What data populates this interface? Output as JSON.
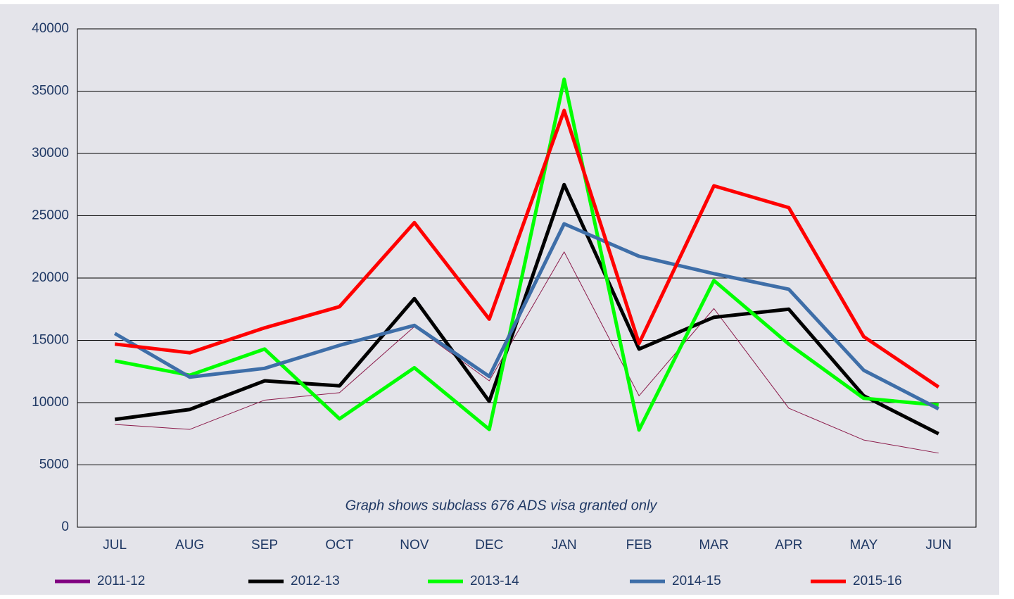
{
  "chart_data": {
    "type": "line",
    "categories": [
      "JUL",
      "AUG",
      "SEP",
      "OCT",
      "NOV",
      "DEC",
      "JAN",
      "FEB",
      "MAR",
      "APR",
      "MAY",
      "JUN"
    ],
    "series": [
      {
        "name": "2011-12",
        "color": "#8b1a4a",
        "legend_color": "#800080",
        "width": 1,
        "values": [
          8250,
          7850,
          10200,
          10800,
          16100,
          11750,
          22100,
          10550,
          17550,
          9550,
          7000,
          5950
        ]
      },
      {
        "name": "2012-13",
        "color": "#000000",
        "width": 5,
        "values": [
          8650,
          9450,
          11750,
          11350,
          18350,
          10100,
          27500,
          14300,
          16850,
          17500,
          10550,
          7500
        ]
      },
      {
        "name": "2013-14",
        "color": "#00ff00",
        "width": 5,
        "values": [
          13350,
          12200,
          14300,
          8700,
          12800,
          7850,
          35950,
          7800,
          19800,
          14700,
          10350,
          9800
        ]
      },
      {
        "name": "2014-15",
        "color": "#3e6ea8",
        "width": 5,
        "values": [
          15550,
          12050,
          12750,
          14600,
          16200,
          12100,
          24350,
          21750,
          20350,
          19100,
          12600,
          9500
        ]
      },
      {
        "name": "2015-16",
        "color": "#ff0000",
        "width": 5,
        "values": [
          14700,
          14000,
          16000,
          17700,
          24450,
          16700,
          33450,
          14750,
          27400,
          25650,
          15300,
          11250
        ]
      }
    ],
    "ylim": [
      0,
      40000
    ],
    "yticks": [
      0,
      5000,
      10000,
      15000,
      20000,
      25000,
      30000,
      35000,
      40000
    ],
    "grid": true,
    "annotation": "Graph shows subclass 676 ADS visa granted only"
  }
}
